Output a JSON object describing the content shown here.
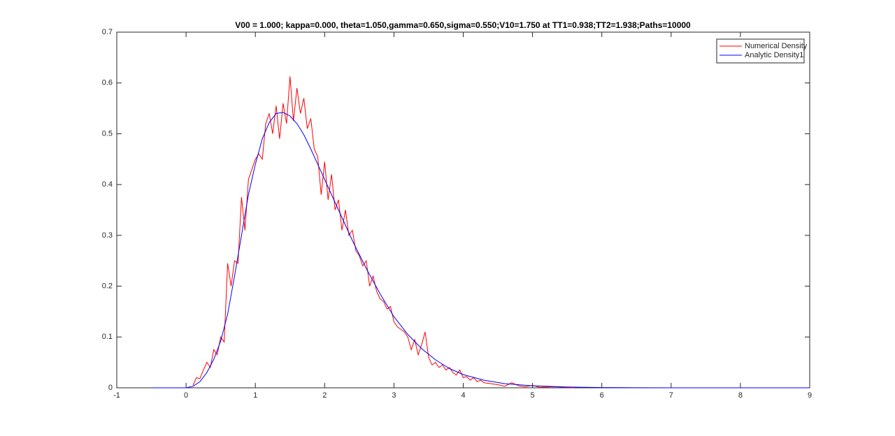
{
  "chart_data": {
    "type": "line",
    "title": "V00 = 1.000; kappa=0.000, theta=1.050,gamma=0.650,sigma=0.550;V10=1.750 at TT1=0.938;TT2=1.938;Paths=10000",
    "xlim": [
      -1,
      9
    ],
    "xticks": [
      -1,
      0,
      1,
      2,
      3,
      4,
      5,
      6,
      7,
      8,
      9
    ],
    "ylim": [
      0,
      0.7
    ],
    "yticks": [
      0,
      0.1,
      0.2,
      0.3,
      0.4,
      0.5,
      0.6,
      0.7
    ],
    "grid": false,
    "legend": "top-right",
    "series": [
      {
        "name": "Numerical Density",
        "color": "#ff0000",
        "x": [
          0.1,
          0.15,
          0.2,
          0.25,
          0.3,
          0.35,
          0.4,
          0.45,
          0.5,
          0.55,
          0.6,
          0.65,
          0.7,
          0.75,
          0.8,
          0.85,
          0.9,
          0.95,
          1.0,
          1.05,
          1.1,
          1.15,
          1.2,
          1.25,
          1.3,
          1.35,
          1.4,
          1.45,
          1.5,
          1.55,
          1.6,
          1.65,
          1.7,
          1.75,
          1.8,
          1.85,
          1.9,
          1.95,
          2.0,
          2.05,
          2.1,
          2.15,
          2.2,
          2.25,
          2.3,
          2.35,
          2.4,
          2.45,
          2.5,
          2.55,
          2.6,
          2.65,
          2.7,
          2.75,
          2.8,
          2.85,
          2.9,
          2.95,
          3.0,
          3.05,
          3.1,
          3.15,
          3.2,
          3.25,
          3.3,
          3.35,
          3.4,
          3.45,
          3.5,
          3.55,
          3.6,
          3.65,
          3.7,
          3.75,
          3.8,
          3.85,
          3.9,
          3.95,
          4.0,
          4.05,
          4.1,
          4.15,
          4.2,
          4.25,
          4.3,
          4.4,
          4.5,
          4.6,
          4.7,
          4.8,
          4.9,
          5.0,
          5.1,
          5.3,
          5.5,
          5.6
        ],
        "values": [
          0.005,
          0.02,
          0.018,
          0.035,
          0.05,
          0.04,
          0.075,
          0.065,
          0.1,
          0.09,
          0.245,
          0.2,
          0.25,
          0.245,
          0.375,
          0.31,
          0.41,
          0.43,
          0.45,
          0.46,
          0.45,
          0.52,
          0.54,
          0.5,
          0.555,
          0.49,
          0.56,
          0.52,
          0.613,
          0.525,
          0.59,
          0.54,
          0.57,
          0.51,
          0.53,
          0.47,
          0.455,
          0.38,
          0.445,
          0.37,
          0.42,
          0.35,
          0.37,
          0.31,
          0.35,
          0.3,
          0.31,
          0.27,
          0.26,
          0.24,
          0.25,
          0.2,
          0.22,
          0.19,
          0.175,
          0.17,
          0.155,
          0.16,
          0.13,
          0.12,
          0.115,
          0.11,
          0.1,
          0.075,
          0.095,
          0.065,
          0.085,
          0.11,
          0.06,
          0.045,
          0.05,
          0.04,
          0.045,
          0.035,
          0.04,
          0.03,
          0.025,
          0.035,
          0.02,
          0.022,
          0.015,
          0.02,
          0.012,
          0.015,
          0.01,
          0.008,
          0.006,
          0.003,
          0.01,
          0.004,
          0.002,
          0.005,
          0.001,
          0.002,
          0.001,
          0
        ]
      },
      {
        "name": "Analytic Density1",
        "color": "#0000ff",
        "x": [
          -0.5,
          0,
          0.1,
          0.2,
          0.3,
          0.4,
          0.5,
          0.6,
          0.7,
          0.8,
          0.9,
          1.0,
          1.1,
          1.2,
          1.3,
          1.4,
          1.5,
          1.6,
          1.7,
          1.8,
          1.9,
          2.0,
          2.2,
          2.4,
          2.6,
          2.8,
          3.0,
          3.2,
          3.4,
          3.6,
          3.8,
          4.0,
          4.3,
          4.6,
          5.0,
          5.5,
          6.0,
          6.5,
          7,
          8,
          9
        ],
        "values": [
          0,
          0,
          0.003,
          0.012,
          0.03,
          0.056,
          0.092,
          0.145,
          0.22,
          0.3,
          0.38,
          0.44,
          0.49,
          0.522,
          0.54,
          0.542,
          0.535,
          0.52,
          0.498,
          0.47,
          0.44,
          0.41,
          0.35,
          0.29,
          0.235,
          0.185,
          0.14,
          0.105,
          0.077,
          0.055,
          0.038,
          0.026,
          0.015,
          0.008,
          0.004,
          0.0015,
          0.0005,
          0.0002,
          0,
          0,
          0
        ]
      }
    ]
  }
}
